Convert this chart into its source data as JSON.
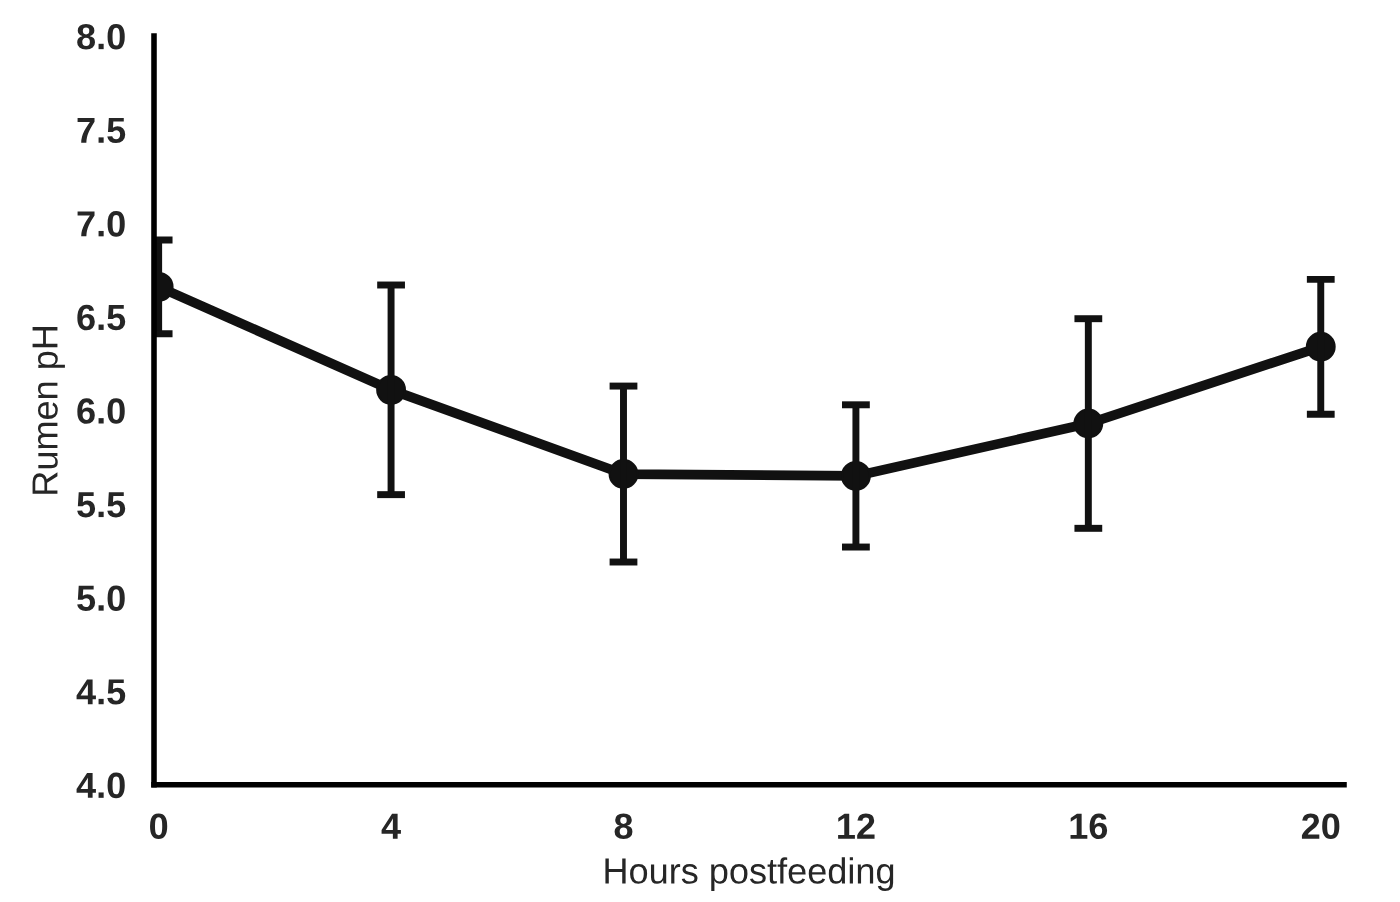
{
  "chart_data": {
    "type": "line",
    "xlabel": "Hours postfeeding",
    "ylabel": "Rumen pH",
    "categories": [
      "0",
      "4",
      "8",
      "12",
      "16",
      "20"
    ],
    "series": [
      {
        "color": "#111111",
        "values": [
          6.66,
          6.11,
          5.66,
          5.65,
          5.93,
          6.34
        ],
        "errors": [
          0.25,
          0.56,
          0.47,
          0.38,
          0.56,
          0.36
        ]
      }
    ],
    "ylim": [
      4.0,
      8.0
    ],
    "yticks": [
      {
        "value": 4.0,
        "label": "4.0"
      },
      {
        "value": 4.5,
        "label": "4.5"
      },
      {
        "value": 5.0,
        "label": "5.0"
      },
      {
        "value": 5.5,
        "label": "5.5"
      },
      {
        "value": 6.0,
        "label": "6.0"
      },
      {
        "value": 6.5,
        "label": "6.5"
      },
      {
        "value": 7.0,
        "label": "7.0"
      },
      {
        "value": 7.5,
        "label": "7.5"
      },
      {
        "value": 8.0,
        "label": "8.0"
      }
    ],
    "grid": false,
    "marker": "circle",
    "line_style": "solid"
  }
}
